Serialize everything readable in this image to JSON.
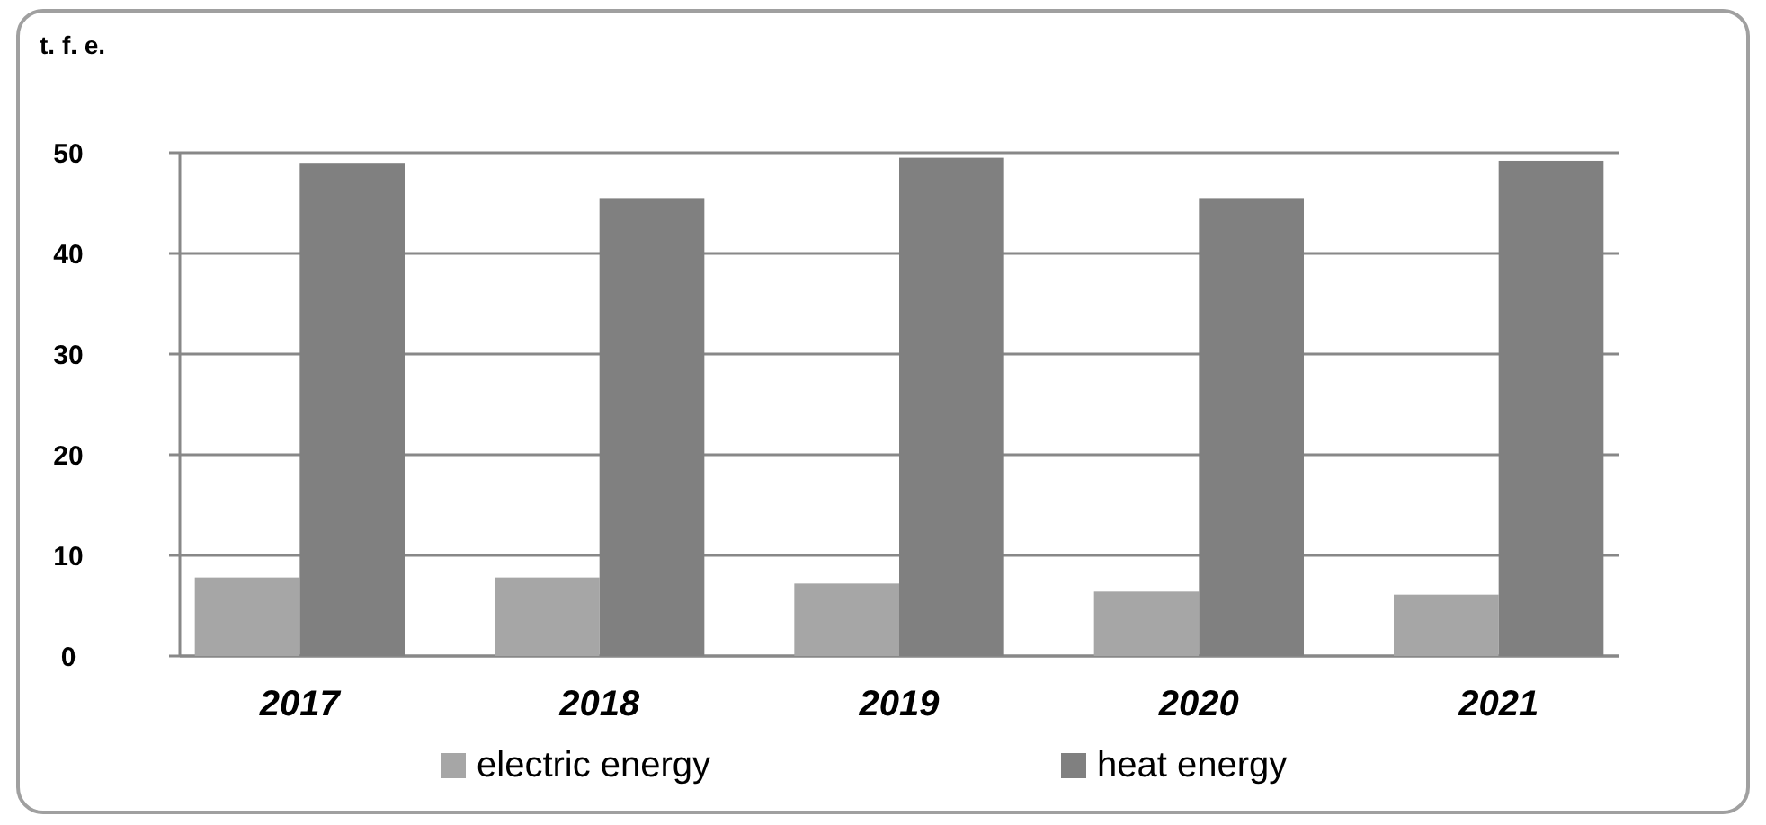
{
  "chart_data": {
    "type": "bar",
    "ylabel": "t. f. e.",
    "categories": [
      "2017",
      "2018",
      "2019",
      "2020",
      "2021"
    ],
    "series": [
      {
        "name": "electric energy",
        "color": "#a6a6a6",
        "values": [
          7.8,
          7.8,
          7.2,
          6.4,
          6.1
        ]
      },
      {
        "name": "heat energy",
        "color": "#808080",
        "values": [
          49,
          45.5,
          49.5,
          45.5,
          49.2
        ]
      }
    ],
    "ylim": [
      0,
      50
    ],
    "yticks": [
      0,
      10,
      20,
      30,
      40,
      50
    ],
    "grid": "y",
    "legend": "bottom"
  }
}
